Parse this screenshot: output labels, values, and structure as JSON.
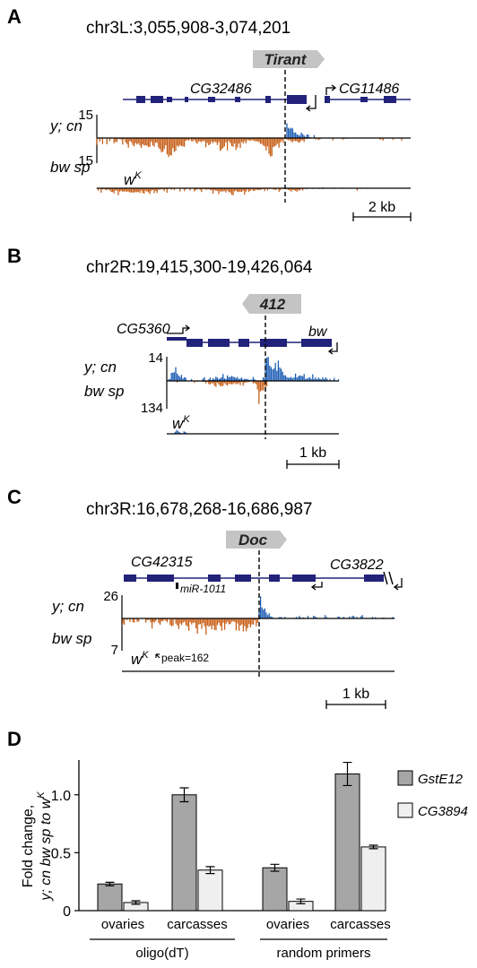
{
  "colors": {
    "gene": "#22227a",
    "plus": "#1f5fb4",
    "minus": "#c8601a",
    "te_box": "#c4c4c4",
    "bar_dark": "#a6a6a6",
    "bar_light": "#efefef"
  },
  "sample_labels": {
    "y_cn": "y; cn",
    "bw_sp": "bw sp",
    "wk_base": "w",
    "wk_sup": "K"
  },
  "panels": [
    {
      "label": "A",
      "coord": "chr3L:3,055,908-3,074,201",
      "te": "Tirant",
      "gene_left": "CG32486",
      "gene_right": "CG11486",
      "scale_top": "15",
      "scale_bottom": "15",
      "scale_bar": "2 kb"
    },
    {
      "label": "B",
      "coord": "chr2R:19,415,300-19,426,064",
      "te": "412",
      "gene_left": "CG5360",
      "gene_right": "bw",
      "scale_top": "14",
      "scale_bottom": "134",
      "scale_bar": "1 kb"
    },
    {
      "label": "C",
      "coord": "chr3R:16,678,268-16,686,987",
      "te": "Doc",
      "gene_left": "CG42315",
      "gene_right": "CG3822",
      "mirna": "miR-1011",
      "scale_top": "26",
      "scale_bottom": "7",
      "peak_note": "peak=162",
      "scale_bar": "1 kb"
    }
  ],
  "chart_data": {
    "type": "bar",
    "label": "D",
    "categories": [
      "ovaries",
      "carcasses",
      "ovaries",
      "carcasses"
    ],
    "groups": [
      "oligo(dT)",
      "random primers"
    ],
    "series": [
      {
        "name": "GstE12",
        "values": [
          0.23,
          1.0,
          0.37,
          1.18
        ],
        "errors": [
          0.015,
          0.06,
          0.03,
          0.1
        ]
      },
      {
        "name": "CG3894",
        "values": [
          0.07,
          0.35,
          0.08,
          0.55
        ],
        "errors": [
          0.015,
          0.03,
          0.02,
          0.015
        ]
      }
    ],
    "ylabel_line1": "Fold change,",
    "ylabel_line2": "y; cn bw sp to w",
    "ylabel_sup": "K",
    "ylim": [
      0,
      1.3
    ],
    "yticks": [
      "0",
      "0.5",
      "1.0"
    ],
    "legend_position": "right"
  }
}
